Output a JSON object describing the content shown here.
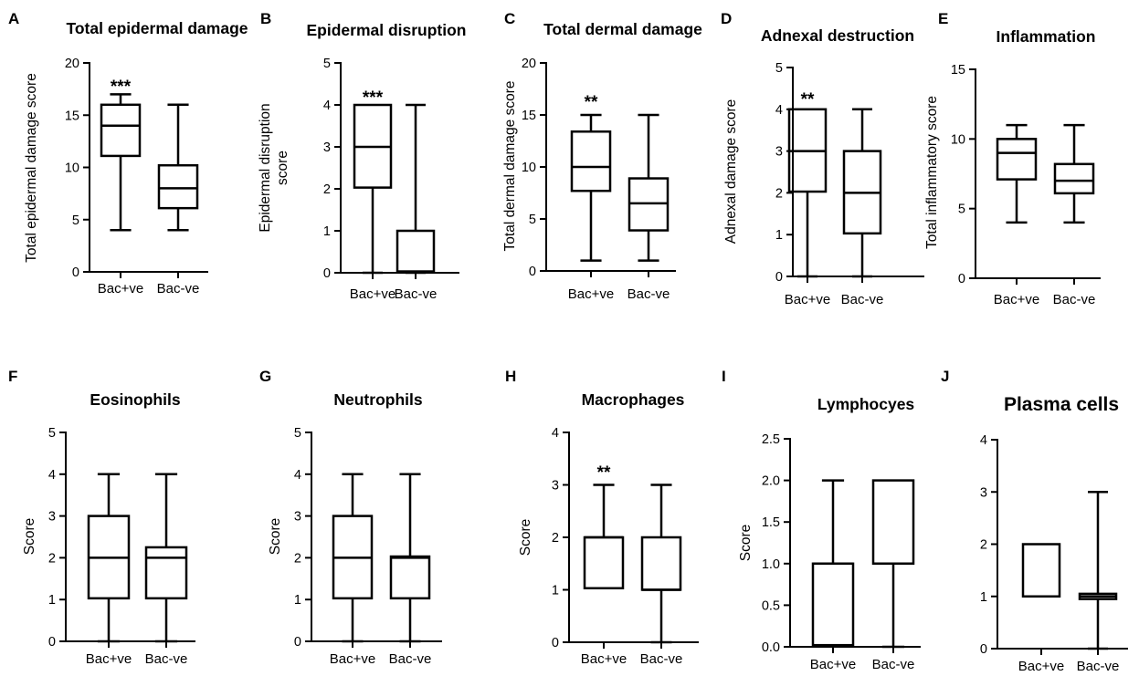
{
  "chart_data": [
    {
      "panel": "A",
      "type": "box",
      "title": "Total epidermal damage",
      "ylabel": "Total epidermal damage score",
      "ylim": [
        0,
        20
      ],
      "yticks": [
        0,
        5,
        10,
        15,
        20
      ],
      "ytick_labels": [
        "0",
        "5",
        "10",
        "15",
        "20"
      ],
      "categories": [
        "Bac+ve",
        "Bac-ve"
      ],
      "boxes": [
        {
          "min": 4,
          "q1": 11.1,
          "median": 14,
          "q3": 16,
          "max": 17
        },
        {
          "min": 4,
          "q1": 6.1,
          "median": 8,
          "q3": 10.2,
          "max": 16
        }
      ],
      "significance": "***"
    },
    {
      "panel": "B",
      "type": "box",
      "title": "Epidermal disruption",
      "ylabel": [
        "Epidermal disruption",
        "score"
      ],
      "ylim": [
        0,
        5
      ],
      "yticks": [
        0,
        1,
        2,
        3,
        4,
        5
      ],
      "ytick_labels": [
        "0",
        "1",
        "2",
        "3",
        "4",
        "5"
      ],
      "categories": [
        "Bac+ve",
        "Bac-ve"
      ],
      "boxes": [
        {
          "min": 0,
          "q1": 2.03,
          "median": 3,
          "q3": 4,
          "max": 4
        },
        {
          "min": 0,
          "q1": 0.03,
          "median": 0.03,
          "q3": 1,
          "max": 4
        }
      ],
      "significance": "***"
    },
    {
      "panel": "C",
      "type": "box",
      "title": "Total dermal damage",
      "ylabel": "Total dermal damage score",
      "ylim": [
        0,
        20
      ],
      "yticks": [
        0,
        5,
        10,
        15,
        20
      ],
      "ytick_labels": [
        "0",
        "5",
        "10",
        "15",
        "20"
      ],
      "categories": [
        "Bac+ve",
        "Bac-ve"
      ],
      "boxes": [
        {
          "min": 1,
          "q1": 7.7,
          "median": 10,
          "q3": 13.4,
          "max": 15
        },
        {
          "min": 1,
          "q1": 3.9,
          "median": 6.5,
          "q3": 8.9,
          "max": 15
        }
      ],
      "significance": "**"
    },
    {
      "panel": "D",
      "type": "box",
      "title": "Adnexal destruction",
      "ylabel": "Adnexal damage score",
      "ylim": [
        0,
        5
      ],
      "yticks": [
        0,
        1,
        2,
        3,
        4,
        5
      ],
      "ytick_labels": [
        "0",
        "1",
        "2",
        "3",
        "4",
        "5"
      ],
      "categories": [
        "Bac+ve",
        "Bac-ve"
      ],
      "boxes": [
        {
          "min": 0,
          "q1": 2.03,
          "median": 3,
          "q3": 4,
          "max": 4
        },
        {
          "min": 0,
          "q1": 1.03,
          "median": 2,
          "q3": 3,
          "max": 4
        }
      ],
      "significance": "**"
    },
    {
      "panel": "E",
      "type": "box",
      "title": "Inflammation",
      "ylabel": "Total inflammatory score",
      "ylim": [
        0,
        15
      ],
      "yticks": [
        0,
        5,
        10,
        15
      ],
      "ytick_labels": [
        "0",
        "5",
        "10",
        "15"
      ],
      "categories": [
        "Bac+ve",
        "Bac-ve"
      ],
      "boxes": [
        {
          "min": 4,
          "q1": 7.1,
          "median": 9,
          "q3": 10,
          "max": 11
        },
        {
          "min": 4,
          "q1": 6.1,
          "median": 7,
          "q3": 8.2,
          "max": 11
        }
      ],
      "significance": ""
    },
    {
      "panel": "F",
      "type": "box",
      "title": "Eosinophils",
      "ylabel": "Score",
      "ylim": [
        0,
        5
      ],
      "yticks": [
        0,
        1,
        2,
        3,
        4,
        5
      ],
      "ytick_labels": [
        "0",
        "1",
        "2",
        "3",
        "4",
        "5"
      ],
      "categories": [
        "Bac+ve",
        "Bac-ve"
      ],
      "boxes": [
        {
          "min": 0,
          "q1": 1.03,
          "median": 2,
          "q3": 3,
          "max": 4
        },
        {
          "min": 0,
          "q1": 1.03,
          "median": 2,
          "q3": 2.25,
          "max": 4
        }
      ],
      "significance": ""
    },
    {
      "panel": "G",
      "type": "box",
      "title": "Neutrophils",
      "ylabel": "Score",
      "ylim": [
        0,
        5
      ],
      "yticks": [
        0,
        1,
        2,
        3,
        4,
        5
      ],
      "ytick_labels": [
        "0",
        "1",
        "2",
        "3",
        "4",
        "5"
      ],
      "categories": [
        "Bac+ve",
        "Bac-ve"
      ],
      "boxes": [
        {
          "min": 0,
          "q1": 1.03,
          "median": 2,
          "q3": 3,
          "max": 4
        },
        {
          "min": 0,
          "q1": 1.03,
          "median": 2,
          "q3": 2.03,
          "max": 4
        }
      ],
      "significance": ""
    },
    {
      "panel": "H",
      "type": "box",
      "title": "Macrophages",
      "ylabel": "Score",
      "ylim": [
        0,
        4
      ],
      "yticks": [
        0,
        1,
        2,
        3,
        4
      ],
      "ytick_labels": [
        "0",
        "1",
        "2",
        "3",
        "4"
      ],
      "categories": [
        "Bac+ve",
        "Bac-ve"
      ],
      "boxes": [
        {
          "min": 1.03,
          "q1": 1.03,
          "median": 2,
          "q3": 2,
          "max": 3
        },
        {
          "min": 0,
          "q1": 1,
          "median": 1,
          "q3": 2,
          "max": 3
        }
      ],
      "significance": "**"
    },
    {
      "panel": "I",
      "type": "box",
      "title": "Lymphocyes",
      "ylabel": "Score",
      "ylim": [
        0,
        2.5
      ],
      "yticks": [
        0,
        0.5,
        1,
        1.5,
        2,
        2.5
      ],
      "ytick_labels": [
        "0.0",
        "0.5",
        "1.0",
        "1.5",
        "2.0",
        "2.5"
      ],
      "categories": [
        "Bac+ve",
        "Bac-ve"
      ],
      "boxes": [
        {
          "min": 0.02,
          "q1": 0.02,
          "median": 1,
          "q3": 1,
          "max": 2
        },
        {
          "min": 0,
          "q1": 1,
          "median": 1,
          "q3": 2,
          "max": 2
        }
      ],
      "significance": ""
    },
    {
      "panel": "J",
      "type": "box",
      "title": "Plasma cells",
      "ylabel": "",
      "ylim": [
        0,
        4
      ],
      "yticks": [
        0,
        1,
        2,
        3,
        4
      ],
      "ytick_labels": [
        "0",
        "1",
        "2",
        "3",
        "4"
      ],
      "categories": [
        "Bac+ve",
        "Bac-ve"
      ],
      "boxes": [
        {
          "min": 1,
          "q1": 1,
          "median": 1,
          "q3": 2,
          "max": 2
        },
        {
          "min": 0,
          "q1": 0.95,
          "median": 1,
          "q3": 1.05,
          "max": 3
        }
      ],
      "significance": ""
    }
  ]
}
